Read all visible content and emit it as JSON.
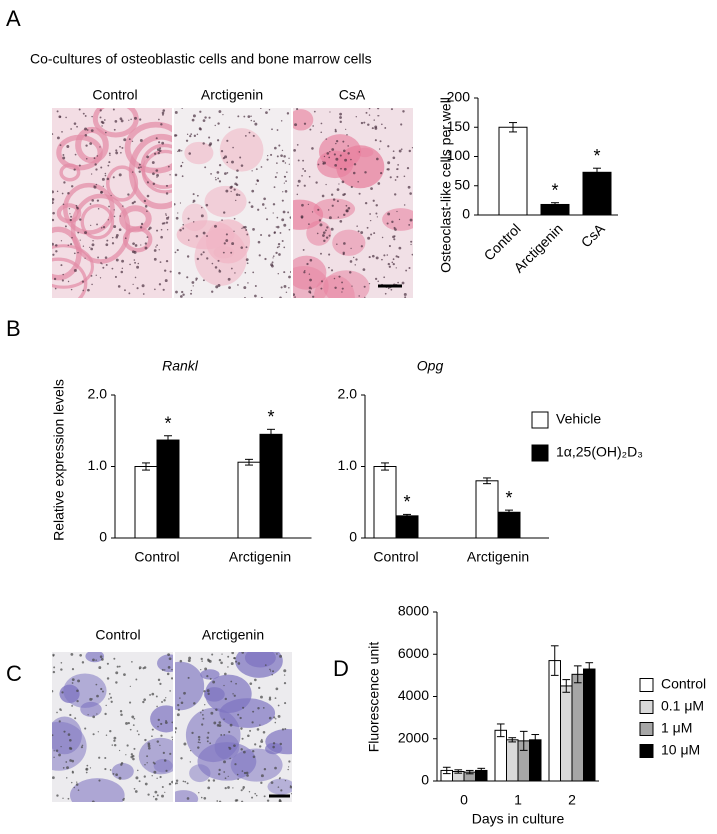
{
  "panel_labels": [
    "A",
    "B",
    "C",
    "D"
  ],
  "panel_a_heading": "Co-cultures of osteoblastic cells and bone marrow cells",
  "panel_a_images": [
    "Control",
    "Arctigenin",
    "CsA"
  ],
  "panel_c_images": [
    "Control",
    "Arctigenin"
  ],
  "chart_data": [
    {
      "type": "bar",
      "y_label": "Osteoclast-like cells per well",
      "categories": [
        "Control",
        "Arctigenin",
        "CsA"
      ],
      "values": [
        150,
        18,
        73
      ],
      "errors": [
        8,
        3,
        7
      ],
      "colors": [
        "#ffffff",
        "#000000",
        "#000000"
      ],
      "flags": [
        null,
        "*",
        "*"
      ],
      "ylim": [
        0,
        200
      ],
      "yticks": [
        0,
        50,
        100,
        150,
        200
      ]
    },
    {
      "type": "bar",
      "title": "Rankl",
      "y_label": "Relative expression levels",
      "categories": [
        "Control",
        "Arctigenin"
      ],
      "series": [
        {
          "color": "#ffffff",
          "values": [
            1.0,
            1.06
          ],
          "errors": [
            0.05,
            0.04
          ],
          "flags": [
            null,
            null
          ]
        },
        {
          "color": "#000000",
          "values": [
            1.37,
            1.45
          ],
          "errors": [
            0.06,
            0.07
          ],
          "flags": [
            "*",
            "*"
          ]
        }
      ],
      "ylim": [
        0,
        2
      ],
      "yticks": [
        0,
        {
          "value": 1,
          "label": "1.0"
        },
        {
          "value": 2,
          "label": "2.0"
        }
      ]
    },
    {
      "type": "bar",
      "title": "Opg",
      "categories": [
        "Control",
        "Arctigenin"
      ],
      "series": [
        {
          "name": "Vehicle",
          "color": "#ffffff",
          "values": [
            1.0,
            0.8
          ],
          "errors": [
            0.05,
            0.04
          ],
          "flags": [
            null,
            null
          ]
        },
        {
          "name": "1α,25(OH)₂D₃",
          "color": "#000000",
          "values": [
            0.31,
            0.36
          ],
          "errors": [
            0.02,
            0.03
          ],
          "flags": [
            "*",
            "*"
          ]
        }
      ],
      "ylim": [
        0,
        2
      ],
      "yticks": [
        0,
        {
          "value": 1,
          "label": "1.0"
        },
        {
          "value": 2,
          "label": "2.0"
        }
      ]
    },
    {
      "type": "bar",
      "y_label": "Fluorescence unit",
      "x_label": "Days in culture",
      "categories": [
        "0",
        "1",
        "2"
      ],
      "series": [
        {
          "name": "Control",
          "color": "#ffffff",
          "values": [
            500,
            2400,
            5700
          ],
          "errors": [
            150,
            300,
            700
          ]
        },
        {
          "name": "0.1 μM",
          "color": "#d9d9d9",
          "values": [
            450,
            1950,
            4500
          ],
          "errors": [
            80,
            100,
            300
          ]
        },
        {
          "name": "1 μM",
          "color": "#a6a6a6",
          "values": [
            420,
            1900,
            5050
          ],
          "errors": [
            80,
            450,
            400
          ]
        },
        {
          "name": "10 μM",
          "color": "#000000",
          "values": [
            500,
            1950,
            5300
          ],
          "errors": [
            100,
            250,
            300
          ]
        }
      ],
      "ylim": [
        0,
        8000
      ],
      "yticks": [
        0,
        2000,
        4000,
        6000,
        8000
      ]
    }
  ]
}
